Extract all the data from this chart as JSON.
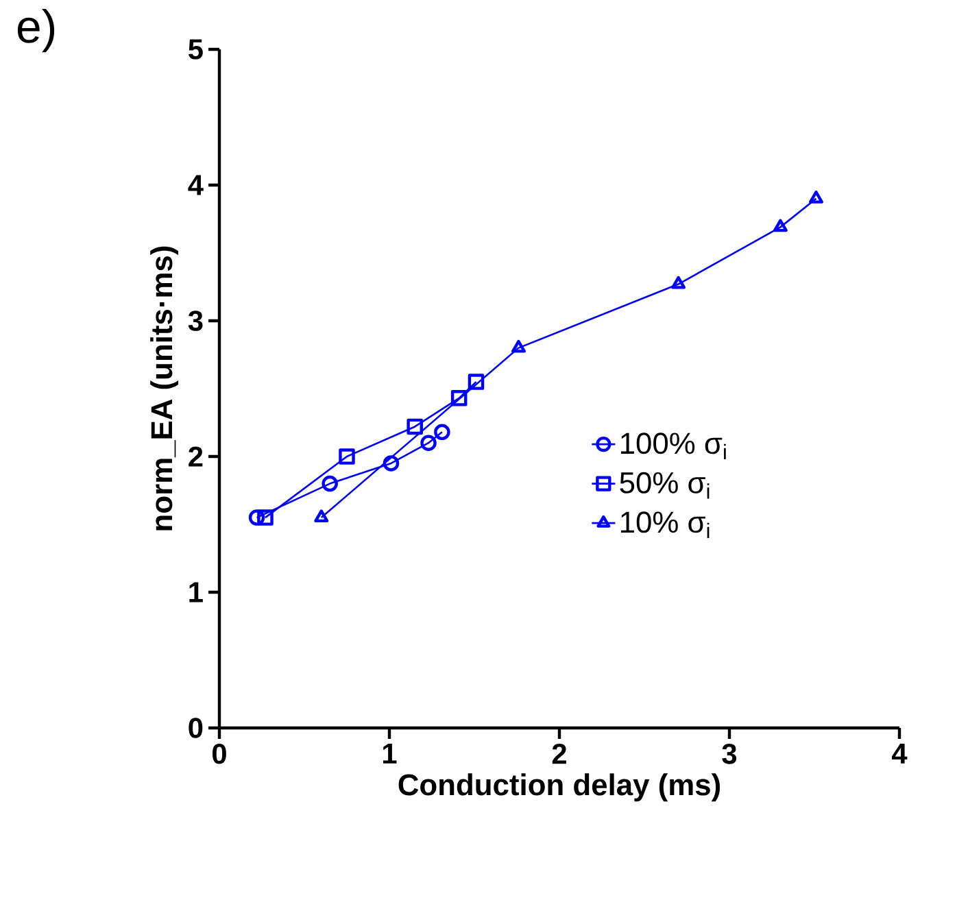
{
  "chart_data": {
    "type": "line",
    "title": "e)",
    "xlabel": "Conduction delay (ms)",
    "ylabel": "norm_EA (units·ms)",
    "xlim": [
      0,
      4
    ],
    "ylim": [
      0,
      5
    ],
    "xticks": [
      0,
      1,
      2,
      3,
      4
    ],
    "yticks": [
      0,
      1,
      2,
      3,
      4,
      5
    ],
    "grid": false,
    "legend": "right",
    "line_style": "solid",
    "series": [
      {
        "name": "100% σ$_{i}$",
        "color": "#0000ff",
        "marker": "circle",
        "x": [
          0.22,
          0.65,
          1.01,
          1.23,
          1.31
        ],
        "values": [
          1.55,
          1.8,
          1.95,
          2.1,
          2.18
        ]
      },
      {
        "name": "50% σ$_{i}$",
        "color": "#0000ff",
        "marker": "square",
        "x": [
          0.27,
          0.75,
          1.15,
          1.41,
          1.51
        ],
        "values": [
          1.55,
          2.0,
          2.22,
          2.43,
          2.55
        ]
      },
      {
        "name": "10% σ$_{i}$",
        "color": "#0000ff",
        "marker": "triangle",
        "x": [
          0.6,
          1.76,
          2.7,
          3.3,
          3.51
        ],
        "values": [
          1.55,
          2.8,
          3.27,
          3.69,
          3.9
        ]
      }
    ]
  }
}
